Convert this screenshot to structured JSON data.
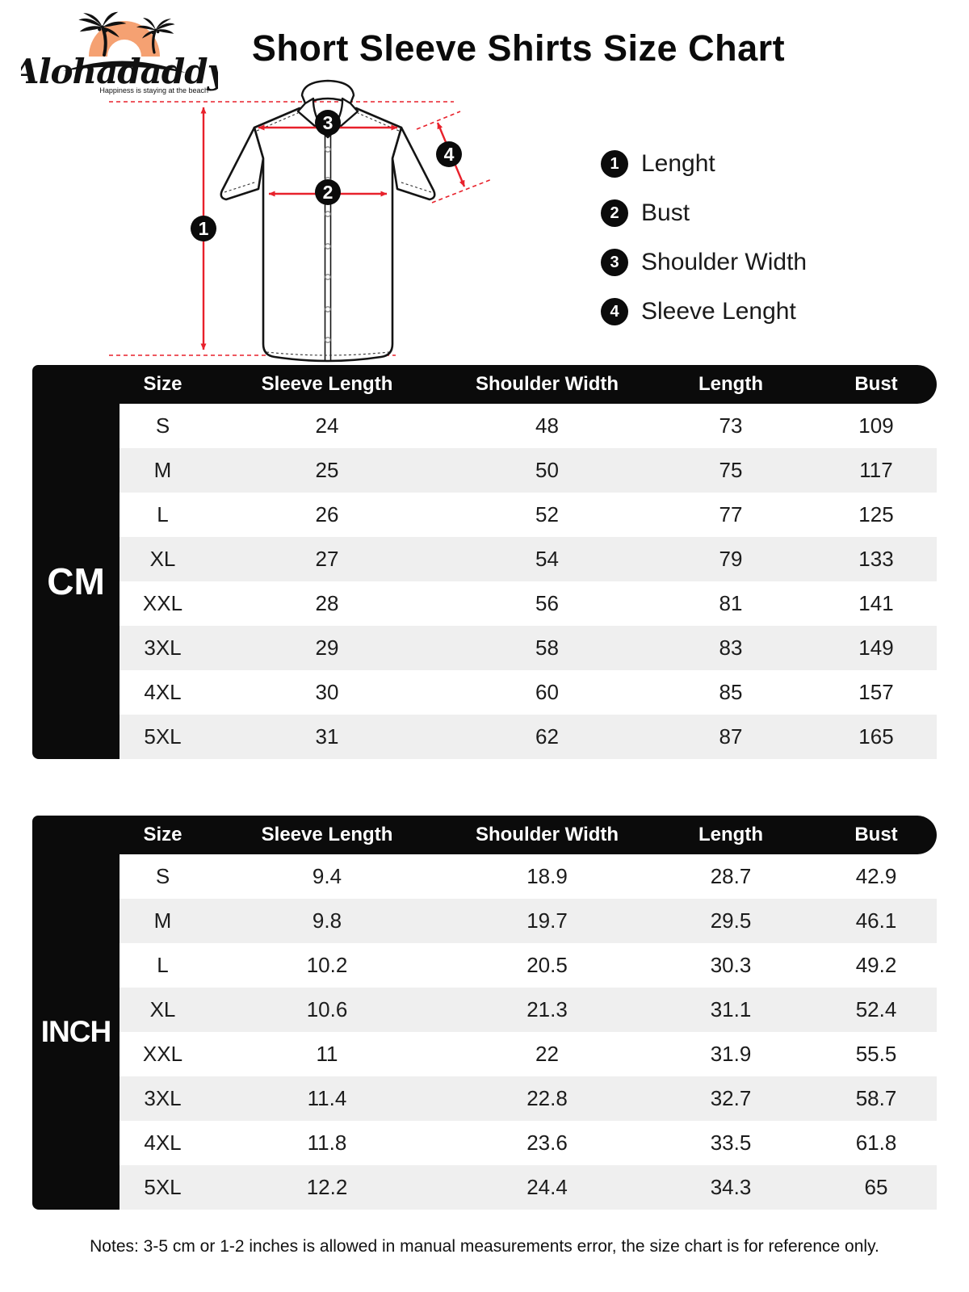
{
  "brand": {
    "name": "Alohadaddy",
    "tagline": "Happiness is staying at the beach"
  },
  "title": "Short Sleeve Shirts Size Chart",
  "diagram": {
    "markers": [
      "1",
      "2",
      "3",
      "4"
    ]
  },
  "legend": {
    "items": [
      {
        "num": "1",
        "label": "Lenght"
      },
      {
        "num": "2",
        "label": "Bust"
      },
      {
        "num": "3",
        "label": "Shoulder Width"
      },
      {
        "num": "4",
        "label": "Sleeve Lenght"
      }
    ]
  },
  "tables": [
    {
      "unit": "CM",
      "columns": [
        "Size",
        "Sleeve Length",
        "Shoulder Width",
        "Length",
        "Bust"
      ],
      "rows": [
        [
          "S",
          "24",
          "48",
          "73",
          "109"
        ],
        [
          "M",
          "25",
          "50",
          "75",
          "117"
        ],
        [
          "L",
          "26",
          "52",
          "77",
          "125"
        ],
        [
          "XL",
          "27",
          "54",
          "79",
          "133"
        ],
        [
          "XXL",
          "28",
          "56",
          "81",
          "141"
        ],
        [
          "3XL",
          "29",
          "58",
          "83",
          "149"
        ],
        [
          "4XL",
          "30",
          "60",
          "85",
          "157"
        ],
        [
          "5XL",
          "31",
          "62",
          "87",
          "165"
        ]
      ]
    },
    {
      "unit": "INCH",
      "columns": [
        "Size",
        "Sleeve Length",
        "Shoulder Width",
        "Length",
        "Bust"
      ],
      "rows": [
        [
          "S",
          "9.4",
          "18.9",
          "28.7",
          "42.9"
        ],
        [
          "M",
          "9.8",
          "19.7",
          "29.5",
          "46.1"
        ],
        [
          "L",
          "10.2",
          "20.5",
          "30.3",
          "49.2"
        ],
        [
          "XL",
          "10.6",
          "21.3",
          "31.1",
          "52.4"
        ],
        [
          "XXL",
          "11",
          "22",
          "31.9",
          "55.5"
        ],
        [
          "3XL",
          "11.4",
          "22.8",
          "32.7",
          "58.7"
        ],
        [
          "4XL",
          "11.8",
          "23.6",
          "33.5",
          "61.8"
        ],
        [
          "5XL",
          "12.2",
          "24.4",
          "34.3",
          "65"
        ]
      ]
    }
  ],
  "note": "Notes: 3-5 cm or 1-2 inches is allowed in manual measurements error, the size chart is for reference only.",
  "colors": {
    "accent_red": "#e8212b",
    "table_black": "#0b0b0b",
    "row_alt": "#efefef",
    "sun_orange": "#f5a172"
  }
}
